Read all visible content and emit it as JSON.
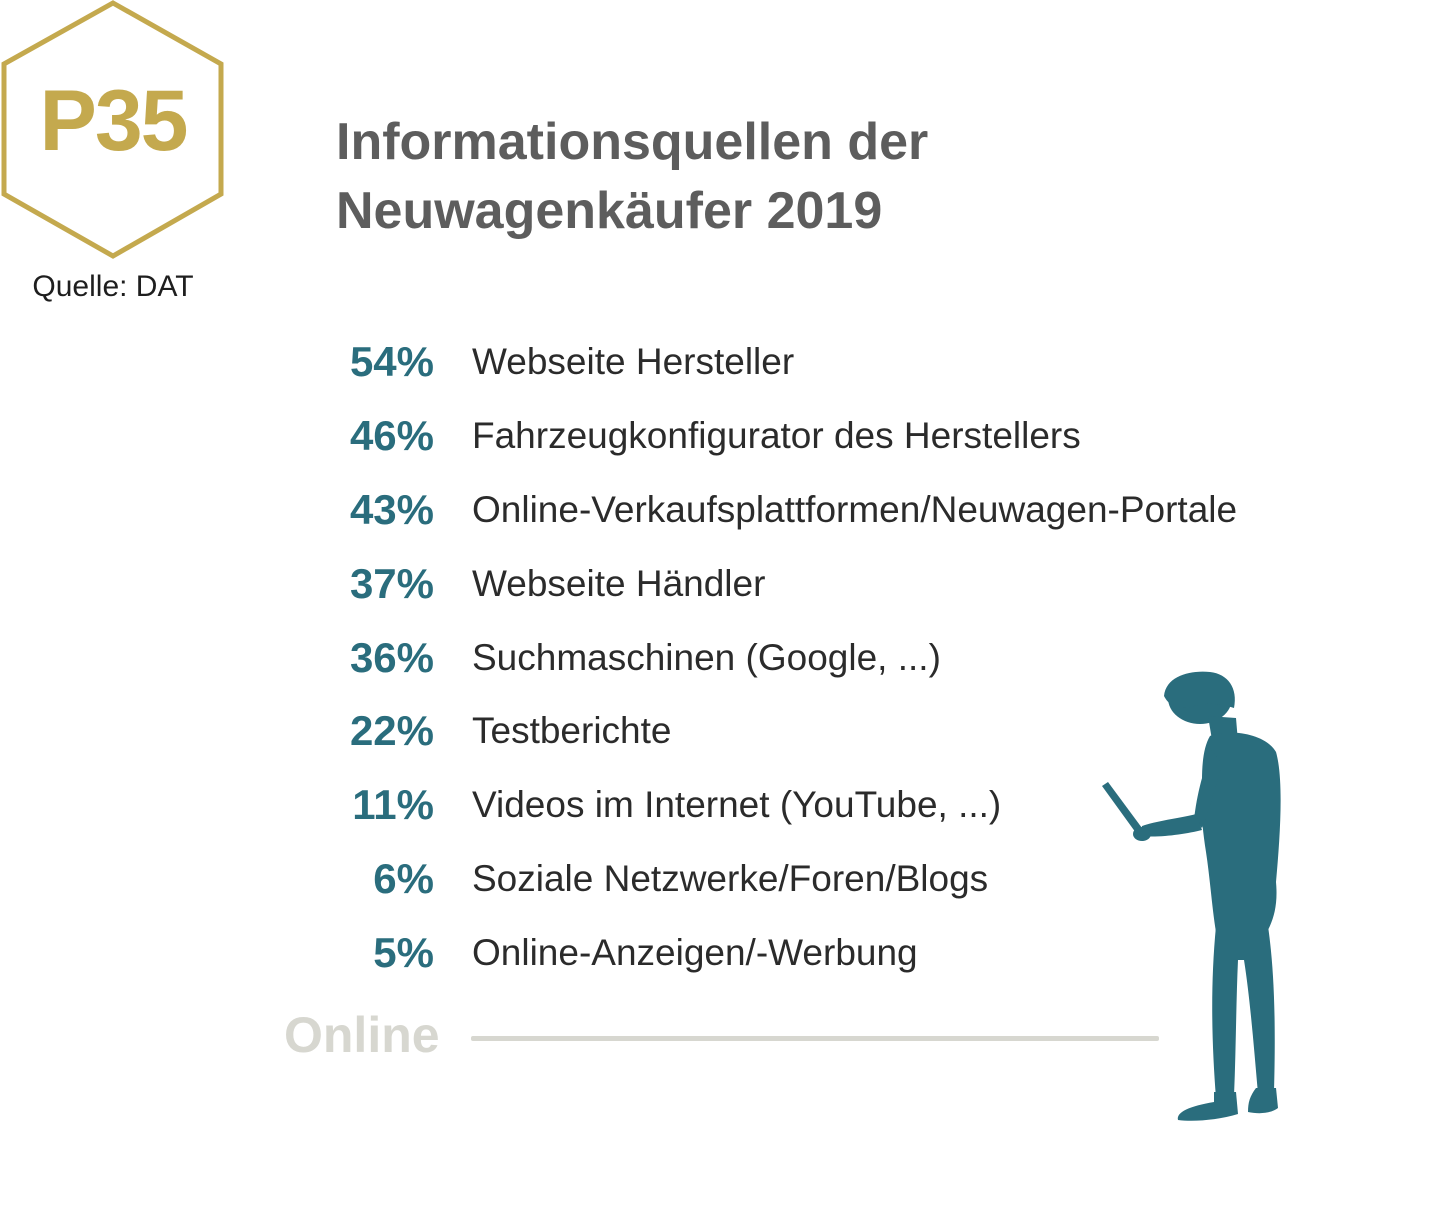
{
  "badge": {
    "code": "P35",
    "border_color": "#c4a94e"
  },
  "source": "Quelle: DAT",
  "title": {
    "line1": "Informationsquellen der",
    "line2": "Neuwagenkäufer 2019"
  },
  "items": [
    {
      "percent": "54%",
      "label": "Webseite Hersteller"
    },
    {
      "percent": "46%",
      "label": "Fahrzeugkonfigurator des Herstellers"
    },
    {
      "percent": "43%",
      "label": "Online-Verkaufsplattformen/Neuwagen-Portale"
    },
    {
      "percent": "37%",
      "label": "Webseite Händler"
    },
    {
      "percent": "36%",
      "label": "Suchmaschinen (Google, ...)"
    },
    {
      "percent": "22%",
      "label": "Testberichte"
    },
    {
      "percent": "11%",
      "label": "Videos im Internet (YouTube, ...)"
    },
    {
      "percent": "6%",
      "label": "Soziale Netzwerke/Foren/Blogs"
    },
    {
      "percent": "5%",
      "label": "Online-Anzeigen/-Werbung"
    }
  ],
  "section_label": "Online",
  "colors": {
    "accent": "#2a6d7d",
    "gold": "#c4a94e",
    "title": "#5d5d5d",
    "muted": "#d7d7d0"
  },
  "illustration": "person-with-laptop"
}
